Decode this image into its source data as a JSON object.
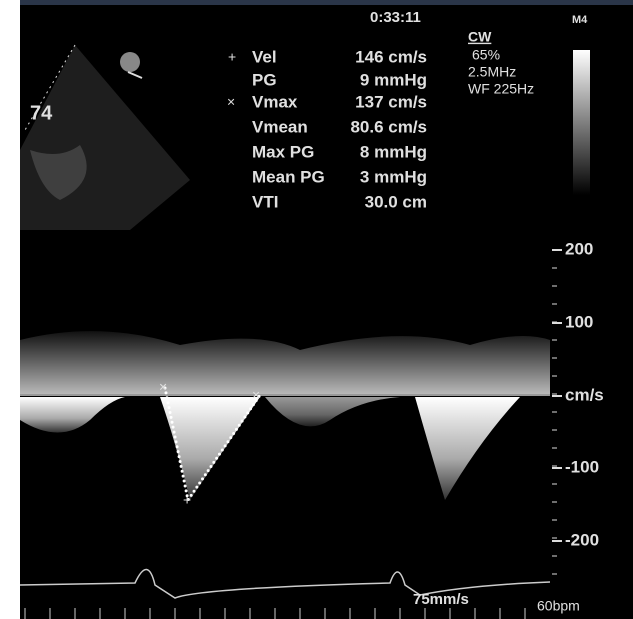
{
  "header": {
    "time": "0:33:11",
    "mode": "CW",
    "gain": "65%",
    "frequency": "2.5MHz",
    "wall_filter": "WF 225Hz",
    "map": "M4"
  },
  "image": {
    "depth_label": "74"
  },
  "measurements": [
    {
      "label": "Vel",
      "value": "146 cm/s"
    },
    {
      "label": "PG",
      "value": "9 mmHg"
    },
    {
      "label": "Vmax",
      "value": "137 cm/s"
    },
    {
      "label": "Vmean",
      "value": "80.6 cm/s"
    },
    {
      "label": "Max PG",
      "value": "8 mmHg"
    },
    {
      "label": "Mean PG",
      "value": "3 mmHg"
    },
    {
      "label": "VTI",
      "value": "30.0 cm"
    }
  ],
  "scale": {
    "labels": [
      "200",
      "100",
      "cm/s",
      "-100",
      "-200"
    ]
  },
  "footer": {
    "sweep_speed": "75mm/s",
    "heart_rate": "60bpm"
  }
}
